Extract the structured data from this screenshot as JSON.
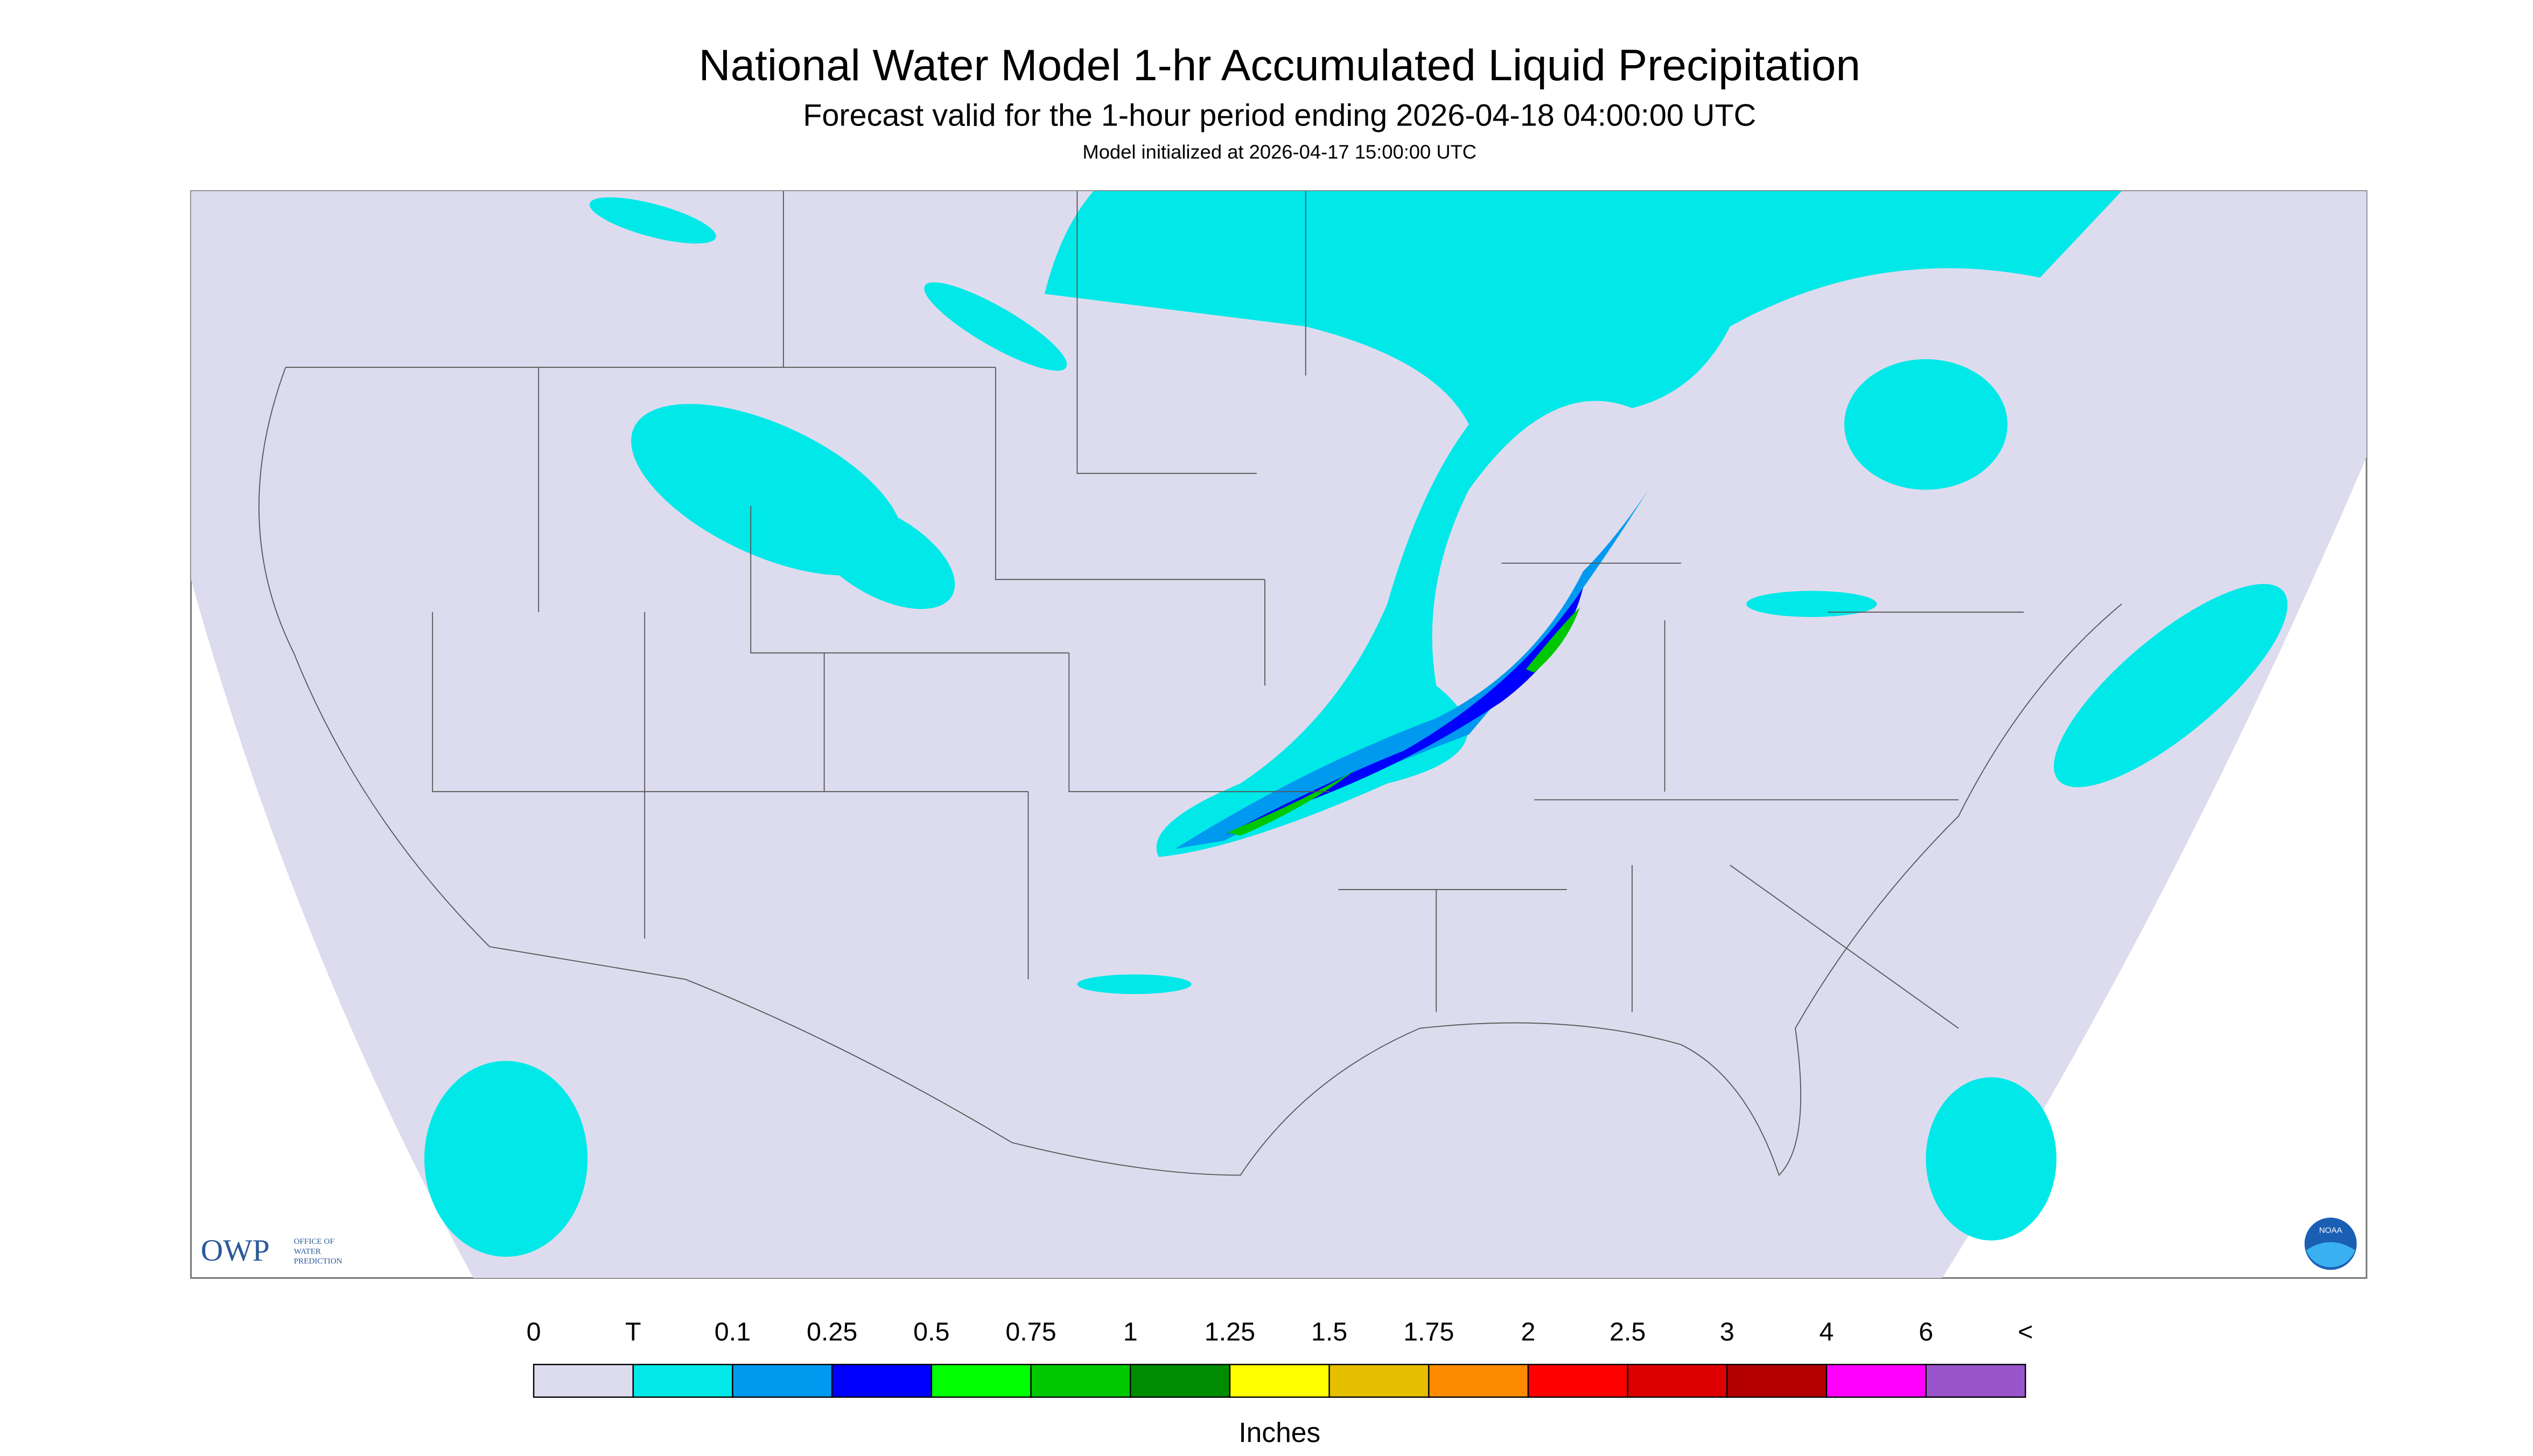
{
  "header": {
    "title": "National Water Model 1-hr Accumulated Liquid Precipitation",
    "subtitle": "Forecast valid for the 1-hour period ending 2026-04-18 04:00:00 UTC",
    "init": "Model initialized at 2026-04-17 15:00:00 UTC"
  },
  "logos": {
    "owp": "OWP",
    "owp_text": [
      "OFFICE OF",
      "WATER",
      "PREDICTION"
    ],
    "noaa": "NOAA"
  },
  "legend": {
    "labels": [
      "0",
      "T",
      "0.1",
      "0.25",
      "0.5",
      "0.75",
      "1",
      "1.25",
      "1.5",
      "1.75",
      "2",
      "2.5",
      "3",
      "4",
      "6",
      "<"
    ],
    "colors": [
      "#dcdcee",
      "#00e8e8",
      "#0099f0",
      "#0000ff",
      "#00ff00",
      "#00c800",
      "#008c00",
      "#ffff00",
      "#e6be00",
      "#ff8c00",
      "#ff0000",
      "#dc0000",
      "#b40000",
      "#ff00ff",
      "#9955cc"
    ],
    "unit": "Inches"
  }
}
